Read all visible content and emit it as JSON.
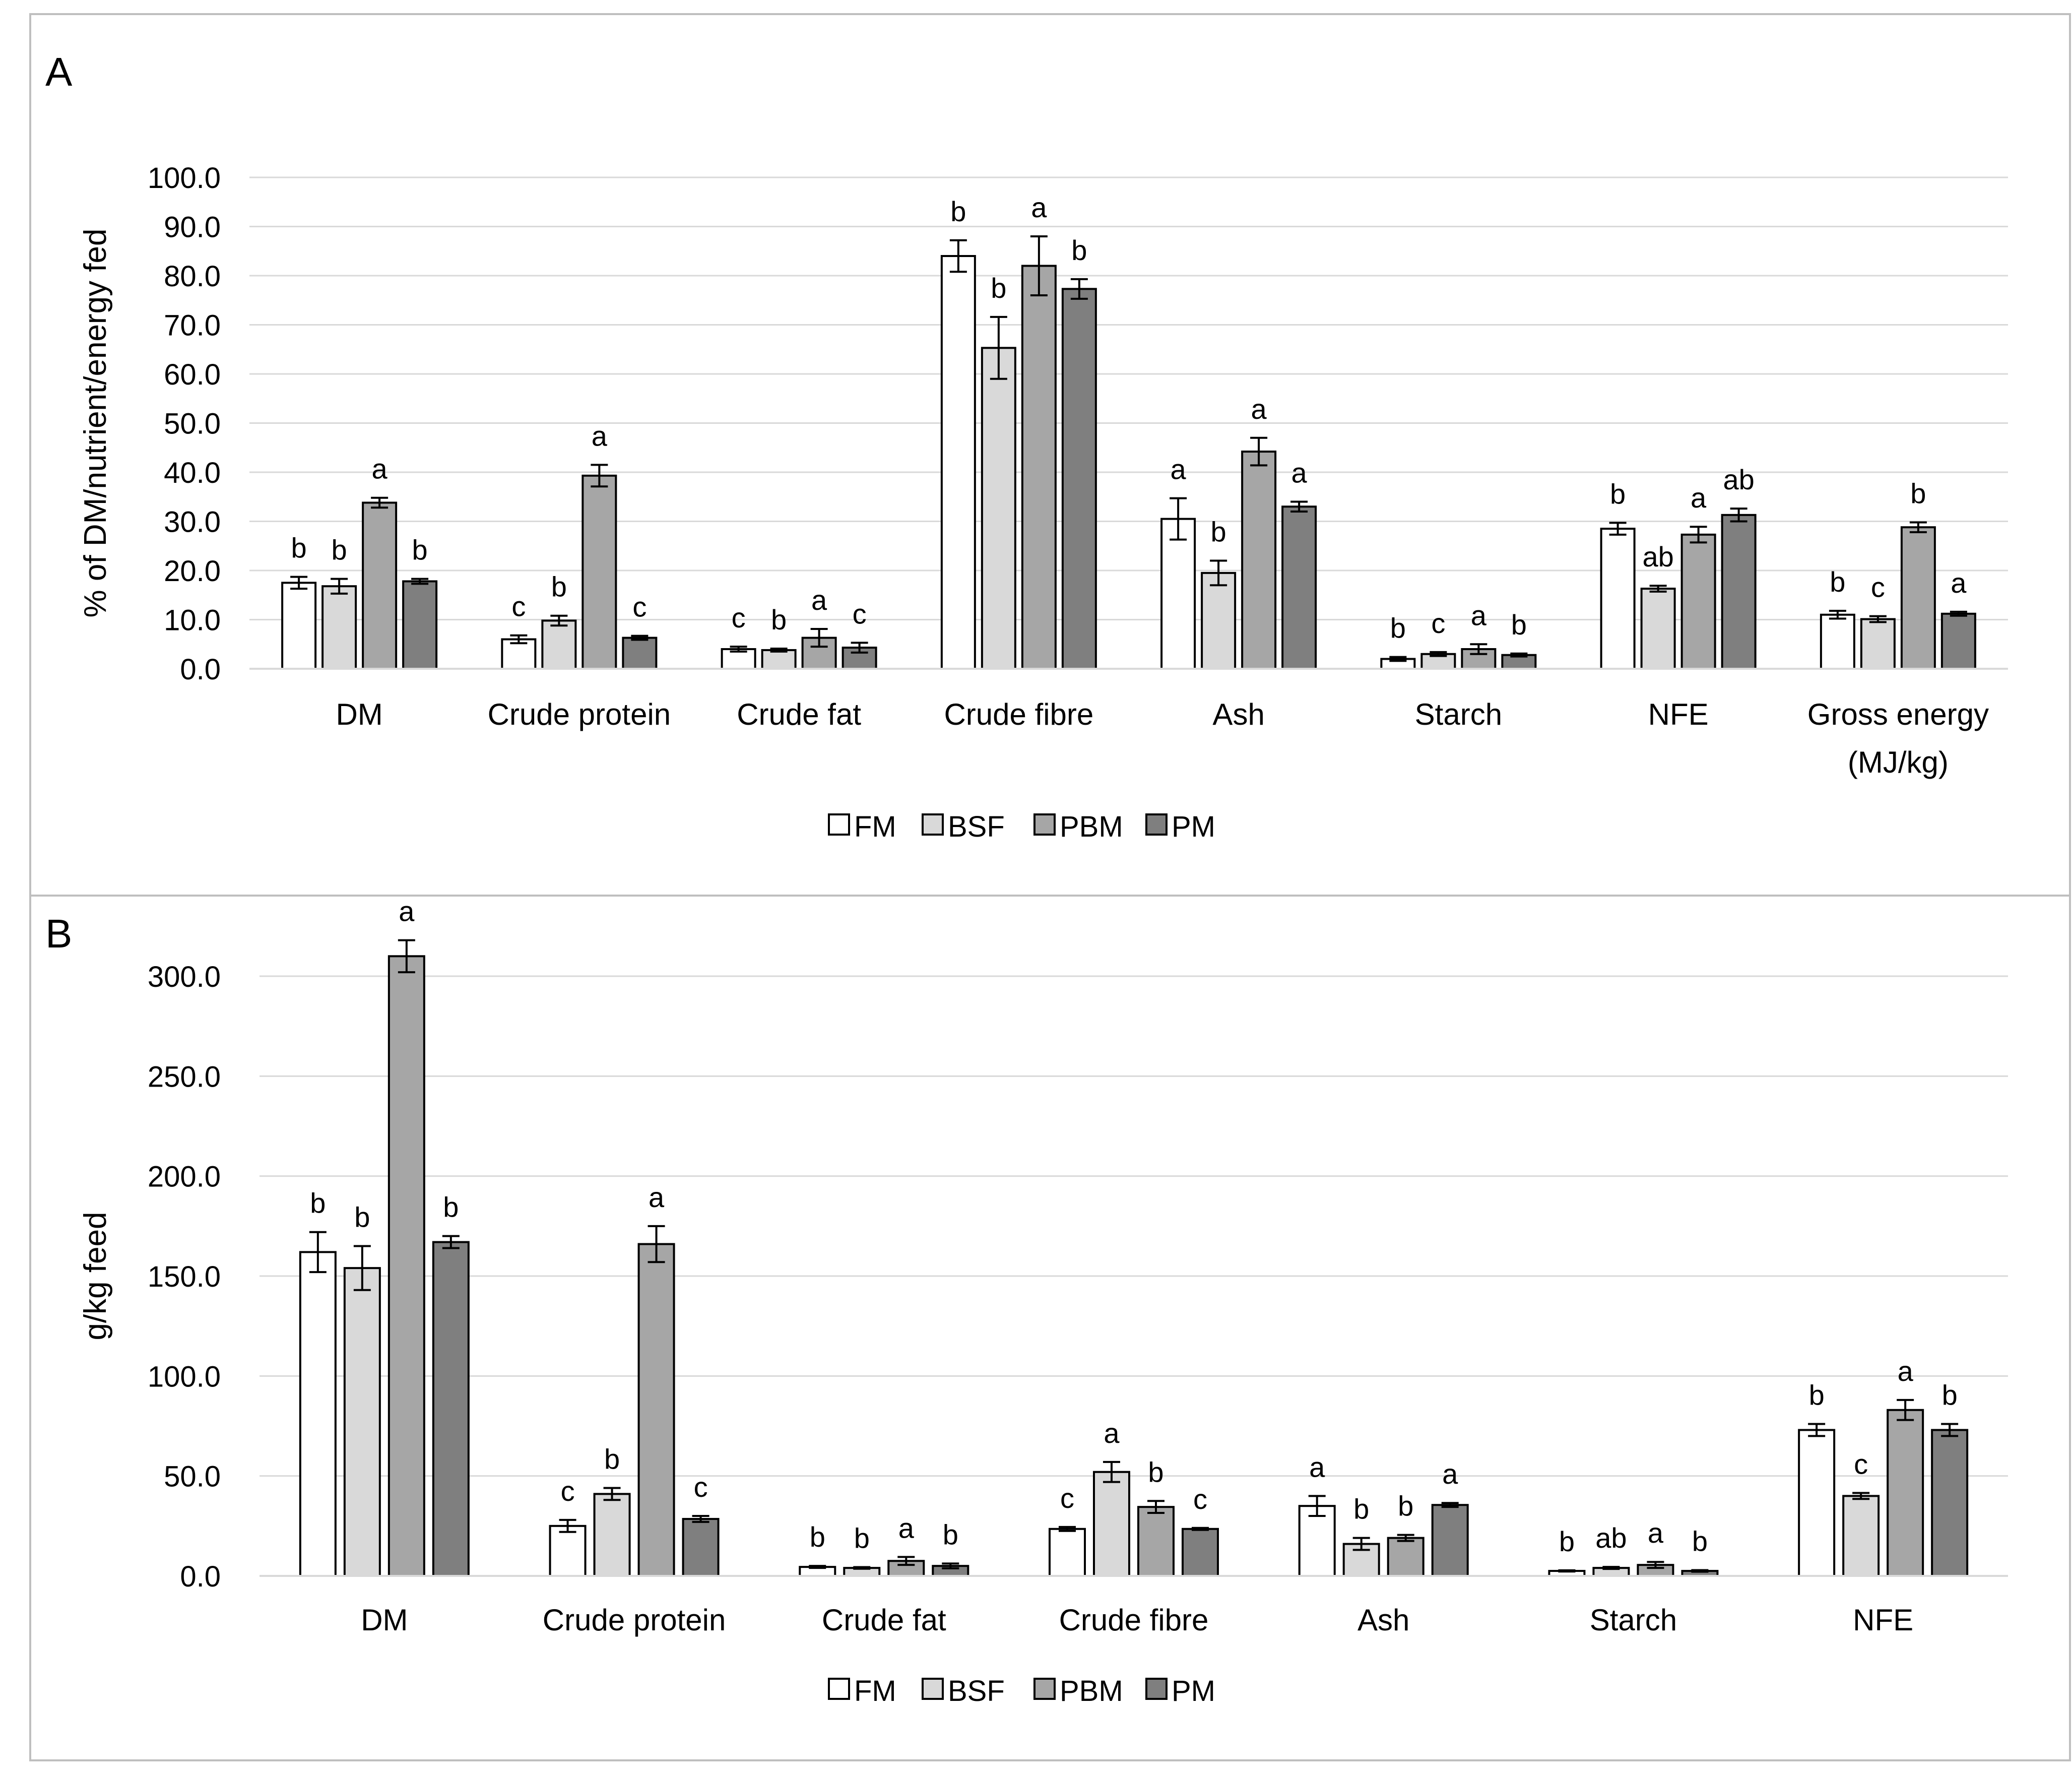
{
  "figure": {
    "series_names": [
      "FM",
      "BSF",
      "PBM",
      "PM"
    ],
    "series_colors": [
      "#ffffff",
      "#d9d9d9",
      "#a6a6a6",
      "#7f7f7f"
    ],
    "gridline_color": "#d9d9d9",
    "border_color": "#bfbfbf"
  },
  "chart_data": [
    {
      "panel_label": "A",
      "type": "bar",
      "ylabel": "% of DM/nutrient/energy fed",
      "xlabel": "",
      "ylim": [
        0,
        100
      ],
      "yticks": [
        "0.0",
        "10.0",
        "20.0",
        "30.0",
        "40.0",
        "50.0",
        "60.0",
        "70.0",
        "80.0",
        "90.0",
        "100.0"
      ],
      "categories": [
        "DM",
        "Crude protein",
        "Crude fat",
        "Crude fibre",
        "Ash",
        "Starch",
        "NFE",
        "Gross energy (MJ/kg)"
      ],
      "category_lines": [
        [
          "DM"
        ],
        [
          "Crude protein"
        ],
        [
          "Crude fat"
        ],
        [
          "Crude fibre"
        ],
        [
          "Ash"
        ],
        [
          "Starch"
        ],
        [
          "NFE"
        ],
        [
          "Gross energy",
          "(MJ/kg)"
        ]
      ],
      "legend": [
        "FM",
        "BSF",
        "PBM",
        "PM"
      ],
      "legend_position": "bottom",
      "series": [
        {
          "name": "FM",
          "values": [
            17.5,
            6.0,
            4.0,
            84.0,
            30.5,
            2.0,
            28.5,
            11.0
          ],
          "errors": [
            1.2,
            0.8,
            0.5,
            3.2,
            4.2,
            0.4,
            1.2,
            0.8
          ],
          "letters": [
            "b",
            "c",
            "c",
            "b",
            "a",
            "b",
            "b",
            "b"
          ]
        },
        {
          "name": "BSF",
          "values": [
            16.8,
            9.8,
            3.8,
            65.3,
            19.5,
            3.0,
            16.3,
            10.1
          ],
          "errors": [
            1.5,
            1.0,
            0.3,
            6.3,
            2.5,
            0.4,
            0.6,
            0.6
          ],
          "letters": [
            "b",
            "b",
            "b",
            "b",
            "b",
            "c",
            "ab",
            "c"
          ]
        },
        {
          "name": "PBM",
          "values": [
            33.8,
            39.3,
            6.3,
            82.0,
            44.2,
            4.0,
            27.3,
            28.8
          ],
          "errors": [
            1.0,
            2.2,
            1.8,
            6.0,
            2.8,
            1.0,
            1.6,
            1.0
          ],
          "letters": [
            "a",
            "a",
            "a",
            "a",
            "a",
            "a",
            "a",
            "b"
          ]
        },
        {
          "name": "PM",
          "values": [
            17.8,
            6.3,
            4.3,
            77.3,
            33.0,
            2.8,
            31.3,
            11.2
          ],
          "errors": [
            0.5,
            0.4,
            1.0,
            2.0,
            1.0,
            0.3,
            1.3,
            0.4
          ],
          "letters": [
            "b",
            "c",
            "c",
            "b",
            "a",
            "b",
            "ab",
            "a"
          ]
        }
      ]
    },
    {
      "panel_label": "B",
      "type": "bar",
      "ylabel": "g/kg feed",
      "xlabel": "",
      "ylim": [
        0,
        300
      ],
      "yticks": [
        "0.0",
        "50.0",
        "100.0",
        "150.0",
        "200.0",
        "250.0",
        "300.0"
      ],
      "categories": [
        "DM",
        "Crude protein",
        "Crude fat",
        "Crude fibre",
        "Ash",
        "Starch",
        "NFE"
      ],
      "category_lines": [
        [
          "DM"
        ],
        [
          "Crude protein"
        ],
        [
          "Crude fat"
        ],
        [
          "Crude fibre"
        ],
        [
          "Ash"
        ],
        [
          "Starch"
        ],
        [
          "NFE"
        ]
      ],
      "legend": [
        "FM",
        "BSF",
        "PBM",
        "PM"
      ],
      "legend_position": "bottom",
      "series": [
        {
          "name": "FM",
          "values": [
            162.0,
            25.0,
            4.5,
            23.5,
            35.0,
            2.5,
            73.0
          ],
          "errors": [
            10.0,
            3.0,
            0.5,
            1.0,
            5.0,
            0.3,
            3.0
          ],
          "letters": [
            "b",
            "c",
            "b",
            "c",
            "a",
            "b",
            "b"
          ]
        },
        {
          "name": "BSF",
          "values": [
            154.0,
            41.0,
            4.0,
            52.0,
            16.0,
            4.0,
            40.0
          ],
          "errors": [
            11.0,
            3.0,
            0.4,
            5.0,
            3.0,
            0.5,
            1.5
          ],
          "letters": [
            "b",
            "b",
            "b",
            "a",
            "b",
            "ab",
            "c"
          ]
        },
        {
          "name": "PBM",
          "values": [
            310.0,
            166.0,
            7.5,
            34.5,
            19.0,
            5.5,
            83.0
          ],
          "errors": [
            8.0,
            9.0,
            2.0,
            3.0,
            1.5,
            1.5,
            5.0
          ],
          "letters": [
            "a",
            "a",
            "a",
            "b",
            "b",
            "a",
            "a"
          ]
        },
        {
          "name": "PM",
          "values": [
            167.0,
            28.5,
            5.0,
            23.5,
            35.5,
            2.5,
            73.0
          ],
          "errors": [
            3.0,
            1.5,
            1.2,
            0.5,
            1.0,
            0.4,
            3.0
          ],
          "letters": [
            "b",
            "c",
            "b",
            "c",
            "a",
            "b",
            "b"
          ]
        }
      ]
    }
  ]
}
